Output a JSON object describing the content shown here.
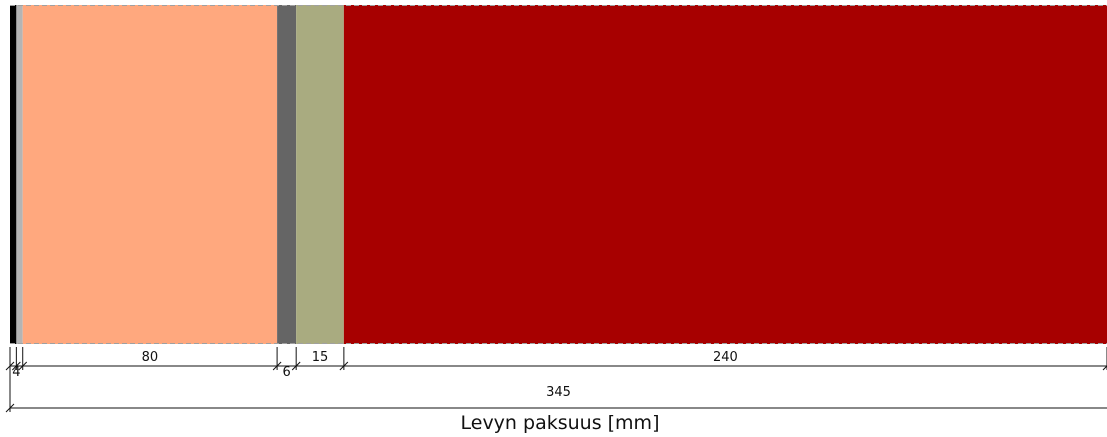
{
  "diagram": {
    "xlabel": "Levyn paksuus [mm]",
    "total_thickness": 345,
    "total_label": "345",
    "layers": [
      {
        "thickness": 2,
        "label": "",
        "color": "#000000"
      },
      {
        "thickness": 2,
        "label": "",
        "color": "#b4b4b4"
      },
      {
        "thickness": 80,
        "label": "80",
        "color": "#ffa87e"
      },
      {
        "thickness": 6,
        "label": "",
        "color": "#656565"
      },
      {
        "thickness": 15,
        "label": "15",
        "color": "#a9ab80"
      },
      {
        "thickness": 240,
        "label": "240",
        "color": "#a70000"
      }
    ],
    "small_labels": [
      {
        "label": "4",
        "at": 2
      },
      {
        "label": "6",
        "at": 87
      }
    ]
  }
}
